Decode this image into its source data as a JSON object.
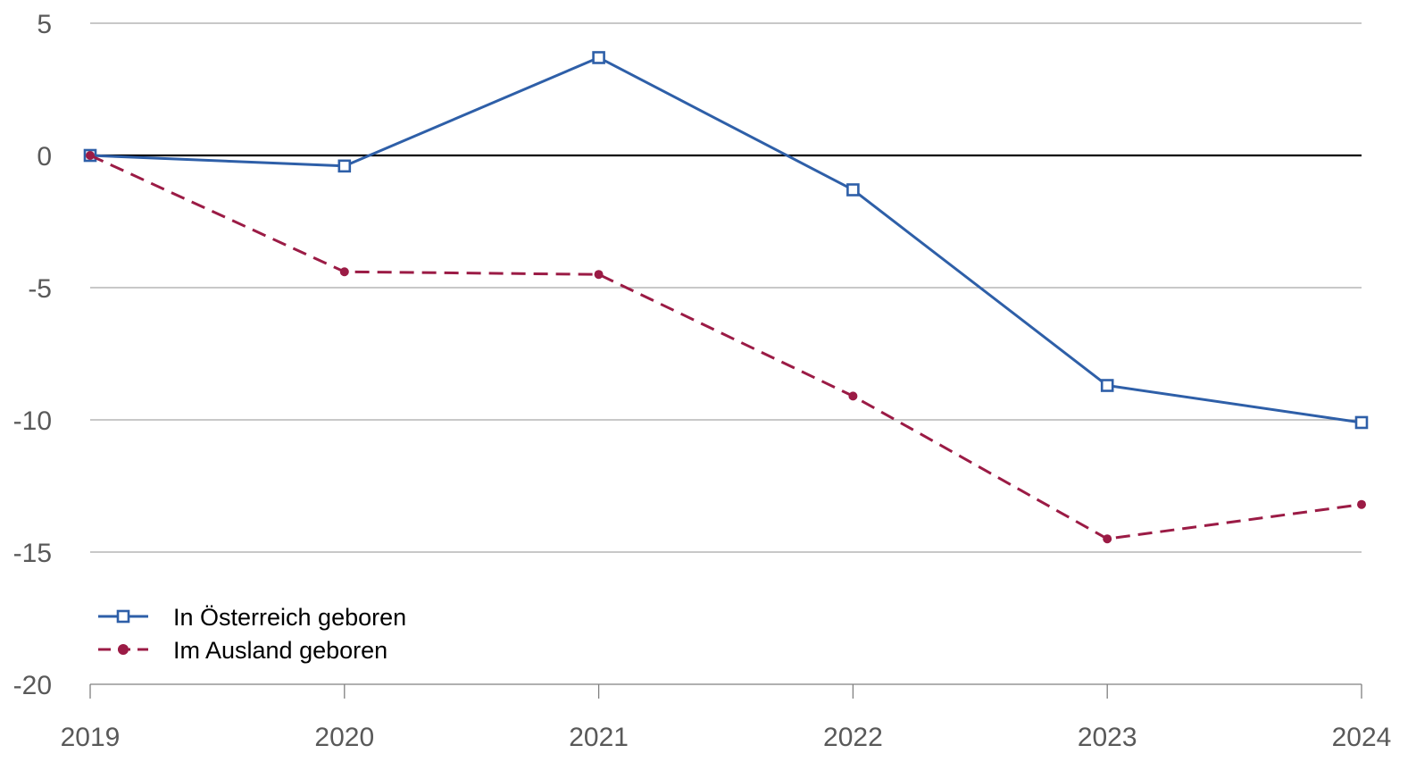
{
  "chart_data": {
    "type": "line",
    "x": [
      "2019",
      "2020",
      "2021",
      "2022",
      "2023",
      "2024"
    ],
    "ylim": [
      -20,
      5
    ],
    "yticks": [
      "5",
      "0",
      "-5",
      "-10",
      "-15",
      "-20"
    ],
    "ytick_values": [
      5,
      0,
      -5,
      -10,
      -15,
      -20
    ],
    "grid": true,
    "legend_position": "bottom-left",
    "series": [
      {
        "name": "In Österreich geboren",
        "values": [
          0,
          -0.4,
          3.7,
          -1.3,
          -8.7,
          -10.1
        ],
        "color": "#2e5fa8",
        "line_style": "solid",
        "marker": "hollow-square"
      },
      {
        "name": "Im Ausland geboren",
        "values": [
          0,
          -4.4,
          -4.5,
          -9.1,
          -14.5,
          -13.2
        ],
        "color": "#9b1b45",
        "line_style": "dashed",
        "marker": "filled-circle"
      }
    ]
  }
}
